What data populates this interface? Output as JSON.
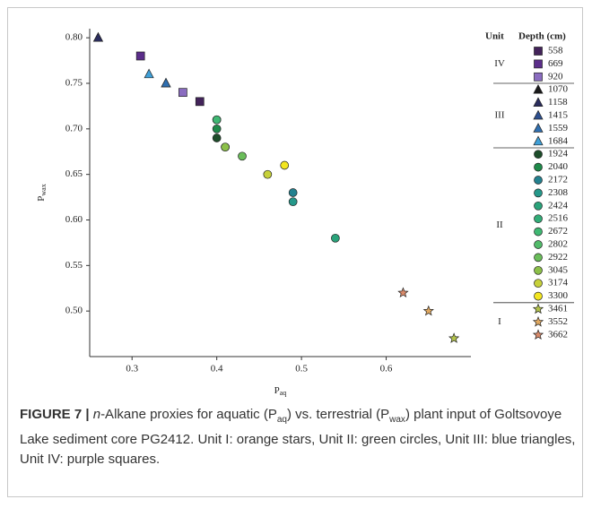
{
  "chart_data": {
    "type": "scatter",
    "xlabel": {
      "text": "P",
      "subscript": "aq"
    },
    "ylabel": {
      "text": "P",
      "subscript": "wax"
    },
    "xlim": [
      0.25,
      0.7
    ],
    "ylim": [
      0.45,
      0.81
    ],
    "xticks": [
      0.3,
      0.4,
      0.5,
      0.6
    ],
    "yticks": [
      {
        "value": 0.5,
        "label": "0.50"
      },
      0.55,
      {
        "value": 0.6,
        "label": "0.60"
      },
      0.65,
      {
        "value": 0.7,
        "label": "0.70"
      },
      0.75,
      {
        "value": 0.8,
        "label": "0.80"
      }
    ],
    "legend": {
      "unit_header": "Unit",
      "depth_header": "Depth (cm)",
      "position": "right"
    },
    "units": [
      {
        "name": "IV",
        "size": 3
      },
      {
        "name": "III",
        "size": 5
      },
      {
        "name": "II",
        "size": 12
      },
      {
        "name": "I",
        "size": 3
      }
    ],
    "series": [
      {
        "name": "558",
        "marker": "square",
        "color": "#43235a",
        "x": [
          0.38
        ],
        "y": [
          0.73
        ]
      },
      {
        "name": "669",
        "marker": "square",
        "color": "#5b2d8a",
        "x": [
          0.31
        ],
        "y": [
          0.78
        ]
      },
      {
        "name": "920",
        "marker": "square",
        "color": "#8a6cc0",
        "x": [
          0.36
        ],
        "y": [
          0.74
        ]
      },
      {
        "name": "1070",
        "marker": "triangle",
        "color": "#1a1a1a",
        "x": [
          0.26
        ],
        "y": [
          0.8
        ]
      },
      {
        "name": "1158",
        "marker": "triangle",
        "color": "#2b2d5e",
        "x": [
          0.26
        ],
        "y": [
          0.8
        ]
      },
      {
        "name": "1415",
        "marker": "triangle",
        "color": "#2d4f8f",
        "x": [
          0.34
        ],
        "y": [
          0.75
        ]
      },
      {
        "name": "1559",
        "marker": "triangle",
        "color": "#2f6fb0",
        "x": [
          0.34
        ],
        "y": [
          0.75
        ]
      },
      {
        "name": "1684",
        "marker": "triangle",
        "color": "#3fa0d8",
        "x": [
          0.32
        ],
        "y": [
          0.76
        ]
      },
      {
        "name": "1924",
        "marker": "circle",
        "color": "#1d4d2a",
        "x": [
          0.4
        ],
        "y": [
          0.69
        ]
      },
      {
        "name": "2040",
        "marker": "circle",
        "color": "#1f8a4a",
        "x": [
          0.4
        ],
        "y": [
          0.7
        ]
      },
      {
        "name": "2172",
        "marker": "circle",
        "color": "#23818f",
        "x": [
          0.49
        ],
        "y": [
          0.63
        ]
      },
      {
        "name": "2308",
        "marker": "circle",
        "color": "#25988a",
        "x": [
          0.49
        ],
        "y": [
          0.62
        ]
      },
      {
        "name": "2424",
        "marker": "circle",
        "color": "#2aa37a",
        "x": [
          0.54
        ],
        "y": [
          0.58
        ]
      },
      {
        "name": "2516",
        "marker": "circle",
        "color": "#32ad78",
        "x": [
          0.4
        ],
        "y": [
          0.71
        ]
      },
      {
        "name": "2672",
        "marker": "circle",
        "color": "#3fb873",
        "x": [
          0.4
        ],
        "y": [
          0.71
        ]
      },
      {
        "name": "2802",
        "marker": "circle",
        "color": "#52bb6a",
        "x": [
          0.41
        ],
        "y": [
          0.68
        ]
      },
      {
        "name": "2922",
        "marker": "circle",
        "color": "#6abd5a",
        "x": [
          0.43
        ],
        "y": [
          0.67
        ]
      },
      {
        "name": "3045",
        "marker": "circle",
        "color": "#8cc049",
        "x": [
          0.41
        ],
        "y": [
          0.68
        ]
      },
      {
        "name": "3174",
        "marker": "circle",
        "color": "#c7d13a",
        "x": [
          0.46
        ],
        "y": [
          0.65
        ]
      },
      {
        "name": "3300",
        "marker": "circle",
        "color": "#f3e621",
        "x": [
          0.48
        ],
        "y": [
          0.66
        ]
      },
      {
        "name": "3461",
        "marker": "star",
        "color": "#b3c34a",
        "x": [
          0.68
        ],
        "y": [
          0.47
        ]
      },
      {
        "name": "3552",
        "marker": "star",
        "color": "#e0a860",
        "x": [
          0.65
        ],
        "y": [
          0.5
        ]
      },
      {
        "name": "3662",
        "marker": "star",
        "color": "#d98a6a",
        "x": [
          0.62
        ],
        "y": [
          0.52
        ]
      }
    ]
  },
  "caption": [
    {
      "text": "FIGURE 7 | ",
      "style": "bold"
    },
    {
      "text": "n",
      "style": "italic"
    },
    {
      "text": "-Alkane proxies for aquatic (P",
      "style": "normal"
    },
    {
      "text": "aq",
      "style": "sub"
    },
    {
      "text": ") vs. terrestrial (P",
      "style": "normal"
    },
    {
      "text": "wax",
      "style": "sub"
    },
    {
      "text": ") plant input of Goltsovoye Lake sediment core PG2412. Unit I: orange stars, Unit II: green circles, Unit III: blue triangles, Unit IV: purple squares.",
      "style": "normal"
    }
  ]
}
